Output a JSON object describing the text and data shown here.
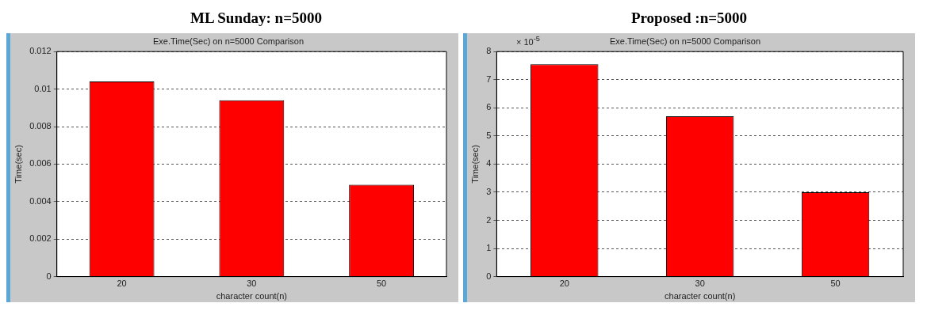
{
  "chart_data": [
    {
      "type": "bar",
      "title": "ML Sunday: n=5000",
      "subtitle": "Exe.Time(Sec) on n=5000 Comparison",
      "xlabel": "character count(n)",
      "ylabel": "Time(sec)",
      "categories": [
        "20",
        "30",
        "50"
      ],
      "values": [
        0.0104,
        0.0094,
        0.0049
      ],
      "color": "#ff0000",
      "ylim": [
        0,
        0.012
      ],
      "yticks": [
        0,
        0.002,
        0.004,
        0.006,
        0.008,
        0.01,
        0.012
      ],
      "grid": "y"
    },
    {
      "type": "bar",
      "title": "Proposed :n=5000",
      "subtitle": "Exe.Time(Sec) on n=5000 Comparison",
      "xlabel": "character count(n)",
      "ylabel": "Time(sec)",
      "categories": [
        "20",
        "30",
        "50"
      ],
      "values": [
        7.55,
        5.7,
        3.0
      ],
      "color": "#ff0000",
      "ylim": [
        0,
        8
      ],
      "yticks": [
        0,
        1,
        2,
        3,
        4,
        5,
        6,
        7,
        8
      ],
      "annotations": [
        "× 10$^{-5}$"
      ],
      "grid": "y"
    }
  ]
}
